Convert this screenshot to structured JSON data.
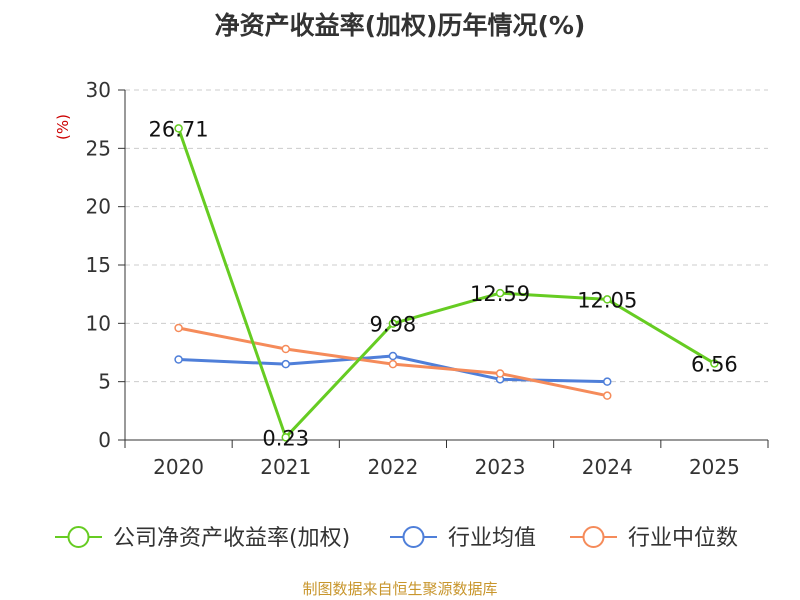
{
  "header": {
    "title": "净资产收益率(加权)历年情况(%)"
  },
  "footer": {
    "source": "制图数据来自恒生聚源数据库"
  },
  "colors": {
    "company": "#66cc22",
    "industry_avg": "#4f7fd9",
    "industry_median": "#f58b5a",
    "ylabel": "#cc0000"
  },
  "chart_data": {
    "type": "line",
    "title": "净资产收益率(加权)历年情况(%)",
    "ylabel": "(%)",
    "xlabel": "",
    "categories": [
      "2020",
      "2021",
      "2022",
      "2023",
      "2024",
      "2025"
    ],
    "ylim": [
      0,
      30
    ],
    "yticks": [
      0,
      5,
      10,
      15,
      20,
      25,
      30
    ],
    "grid": true,
    "legend_position": "bottom",
    "series": [
      {
        "name": "公司净资产收益率(加权)",
        "color": "#66cc22",
        "values": [
          26.71,
          0.23,
          9.98,
          12.59,
          12.05,
          6.56
        ],
        "labels": [
          "26.71",
          "0.23",
          "9.98",
          "12.59",
          "12.05",
          "6.56"
        ]
      },
      {
        "name": "行业均值",
        "color": "#4f7fd9",
        "values": [
          6.9,
          6.5,
          7.2,
          5.2,
          5.0,
          null
        ]
      },
      {
        "name": "行业中位数",
        "color": "#f58b5a",
        "values": [
          9.6,
          7.8,
          6.5,
          5.7,
          3.8,
          null
        ]
      }
    ]
  }
}
